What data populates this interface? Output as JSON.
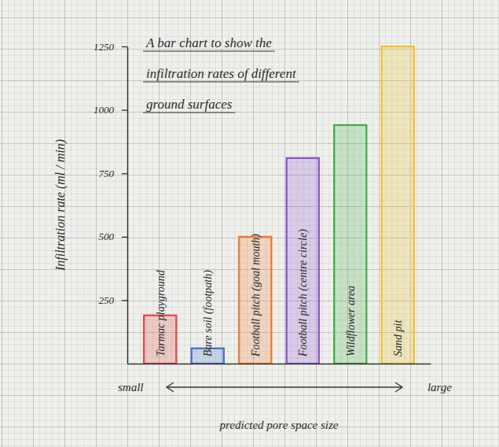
{
  "chart_data": {
    "type": "bar",
    "title": "A bar chart to show the infiltration rates of different ground surfaces",
    "ylabel": "Infiltration rate (ml / min)",
    "xlabel": "predicted pore space size",
    "annotations": [
      "small",
      "large"
    ],
    "categories": [
      "Tarmac playground",
      "Bare soil (footpath)",
      "Football pitch (goal mouth)",
      "Football pitch (centre circle)",
      "Wildflower area",
      "Sand pit"
    ],
    "values": [
      190,
      60,
      500,
      810,
      940,
      1250
    ],
    "colors": [
      "#e0453f",
      "#3a6fd0",
      "#f07a2a",
      "#8a4fd6",
      "#3cb043",
      "#f2c21a"
    ],
    "ylim": [
      0,
      1250
    ],
    "yticks": [
      250,
      500,
      750,
      1000,
      1250
    ]
  }
}
